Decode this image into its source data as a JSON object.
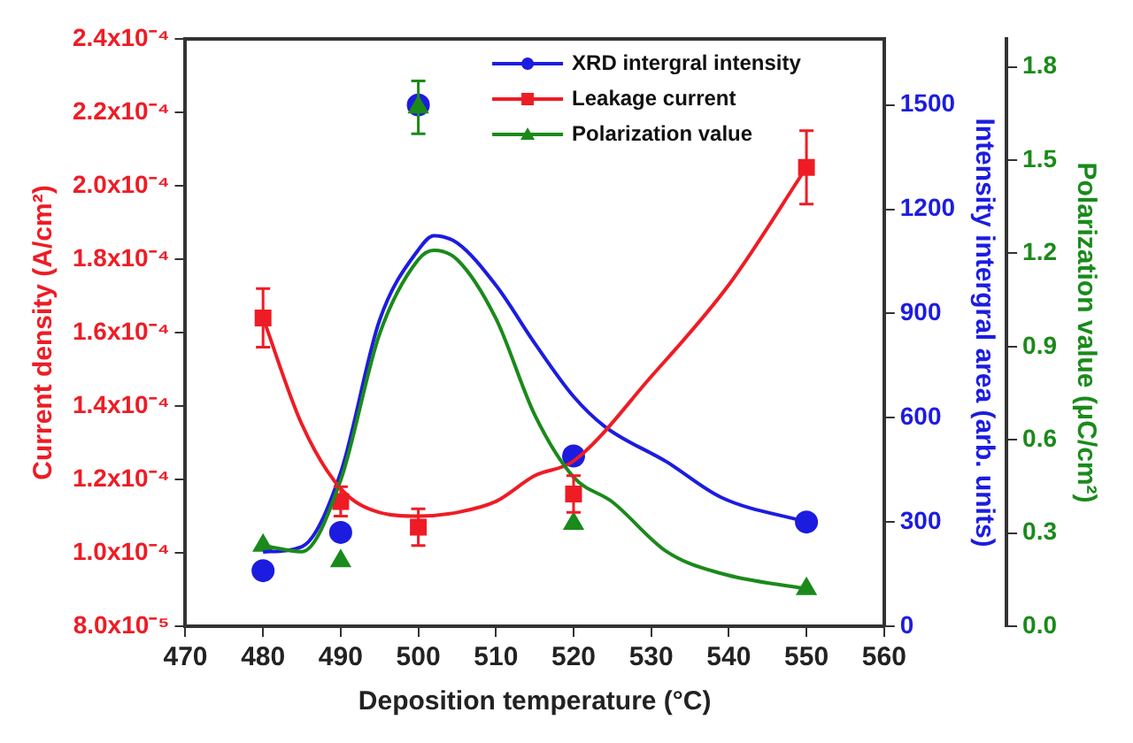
{
  "chart_data": {
    "type": "line",
    "xlabel": "Deposition temperature (°C)",
    "ylabel": "Current density (A/cm²)",
    "y2label": "Intensity intergral area (arb. units)",
    "y3label": "Polarization value (μC/cm²)",
    "xlim": [
      470,
      560
    ],
    "xticks": [
      470,
      480,
      490,
      500,
      510,
      520,
      530,
      540,
      550,
      560
    ],
    "ylim": [
      8e-05,
      0.00024
    ],
    "yticks": [
      {
        "value": 8e-05,
        "label": "8.0x10⁻⁵"
      },
      {
        "value": 0.0001,
        "label": "1.0x10⁻⁴"
      },
      {
        "value": 0.00012,
        "label": "1.2x10⁻⁴"
      },
      {
        "value": 0.00014,
        "label": "1.4x10⁻⁴"
      },
      {
        "value": 0.00016,
        "label": "1.6x10⁻⁴"
      },
      {
        "value": 0.00018,
        "label": "1.8x10⁻⁴"
      },
      {
        "value": 0.0002,
        "label": "2.0x10⁻⁴"
      },
      {
        "value": 0.00022,
        "label": "2.2x10⁻⁴"
      },
      {
        "value": 0.00024,
        "label": "2.4x10⁻⁴"
      }
    ],
    "y2lim": [
      0,
      1690
    ],
    "y2ticks": [
      0,
      300,
      600,
      900,
      1200,
      1500
    ],
    "y3lim": [
      0,
      1.89
    ],
    "y3ticks": [
      {
        "value": 0,
        "label": "0.0"
      },
      0.3,
      0.6,
      0.9,
      1.2,
      1.5,
      1.8
    ],
    "grid": false,
    "legend": "top right",
    "series": [
      {
        "name": "XRD intergral intensity",
        "type": "scatter",
        "axis": "y2",
        "color": "#1c1ce0",
        "marker": "circle",
        "x": [
          480,
          490,
          500,
          520,
          550
        ],
        "values": [
          160,
          270,
          1500,
          490,
          300
        ]
      },
      {
        "name": "Leakage current",
        "type": "scatter",
        "axis": "y",
        "color": "#ee1c25",
        "marker": "square",
        "x": [
          480,
          490,
          500,
          520,
          550
        ],
        "values": [
          0.000164,
          0.000114,
          0.000107,
          0.000116,
          0.000205
        ],
        "errors": [
          8e-06,
          4e-06,
          5e-06,
          5e-06,
          1e-05
        ]
      },
      {
        "name": "Polarization value",
        "type": "scatter",
        "axis": "y3",
        "color": "#1a8a1a",
        "marker": "triangle",
        "x": [
          480,
          490,
          500,
          520,
          550
        ],
        "values": [
          0.26,
          0.21,
          1.67,
          0.33,
          0.12
        ],
        "errors": [
          null,
          null,
          0.085,
          null,
          null
        ]
      },
      {
        "type": "line",
        "axis": "y2",
        "color": "#1c1ce0",
        "marker": "none",
        "x": [
          480,
          485,
          490,
          495,
          500,
          502,
          505,
          510,
          515,
          520,
          524,
          532,
          539,
          550
        ],
        "values": [
          214,
          229,
          442,
          880,
          1083,
          1124,
          1103,
          981,
          814,
          661,
          575,
          473,
          371,
          300
        ]
      },
      {
        "type": "line",
        "axis": "y",
        "color": "#ee1c25",
        "marker": "none",
        "x": [
          480,
          485,
          490,
          495,
          500,
          505,
          510,
          515,
          520,
          530,
          540,
          550
        ],
        "values": [
          0.000164,
          0.000135,
          0.0001175,
          0.000111,
          0.00011,
          0.000111,
          0.000114,
          0.000121,
          0.000125,
          0.000148,
          0.000173,
          0.000205
        ]
      },
      {
        "type": "line",
        "axis": "y3",
        "color": "#1a8a1a",
        "marker": "none",
        "x": [
          480,
          485,
          490,
          495,
          500,
          502,
          505,
          510,
          515,
          520,
          525,
          532,
          539,
          550
        ],
        "values": [
          0.26,
          0.24,
          0.47,
          0.94,
          1.18,
          1.21,
          1.18,
          0.99,
          0.68,
          0.48,
          0.4,
          0.24,
          0.17,
          0.12
        ]
      }
    ]
  }
}
